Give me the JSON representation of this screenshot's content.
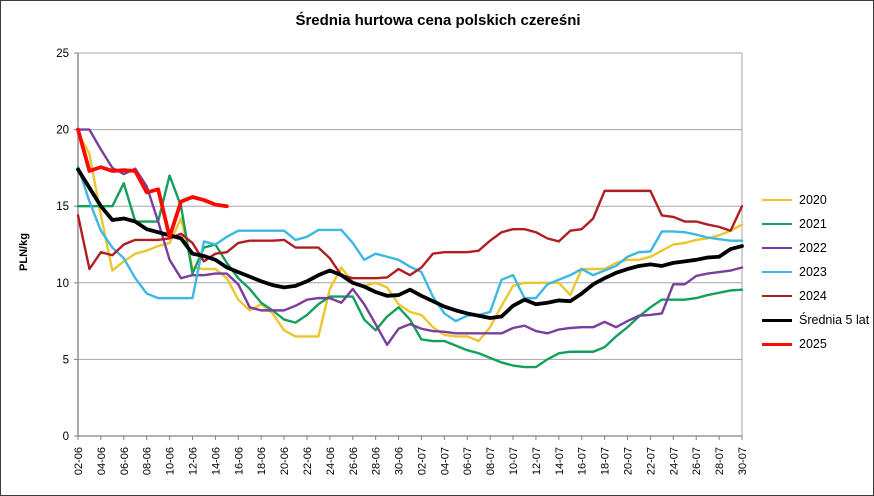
{
  "chart_data": {
    "type": "line",
    "title": "Średnia hurtowa cena polskich czereśni",
    "ylabel": "PLN/kg",
    "xlabel": "",
    "ylim": [
      0,
      25
    ],
    "y_ticks": [
      0,
      5,
      10,
      15,
      20,
      25
    ],
    "x_tick_every": 2,
    "grid": "horizontal-gridlines-on",
    "legend_position": "right",
    "axis_color": "#808080",
    "grid_color": "#a6a6a6",
    "text_color": "#000000",
    "categories": [
      "02-06",
      "03-06",
      "04-06",
      "05-06",
      "06-06",
      "07-06",
      "08-06",
      "09-06",
      "10-06",
      "11-06",
      "12-06",
      "13-06",
      "14-06",
      "15-06",
      "16-06",
      "17-06",
      "18-06",
      "19-06",
      "20-06",
      "21-06",
      "22-06",
      "23-06",
      "24-06",
      "25-06",
      "26-06",
      "27-06",
      "28-06",
      "29-06",
      "30-06",
      "01-07",
      "02-07",
      "03-07",
      "04-07",
      "05-07",
      "06-07",
      "07-07",
      "08-07",
      "09-07",
      "10-07",
      "11-07",
      "12-07",
      "13-07",
      "14-07",
      "15-07",
      "16-07",
      "17-07",
      "18-07",
      "19-07",
      "20-07",
      "21-07",
      "22-07",
      "23-07",
      "24-07",
      "25-07",
      "26-07",
      "27-07",
      "28-07",
      "29-07",
      "30-07"
    ],
    "series": [
      {
        "name": "2020",
        "color": "#edc62f",
        "width": 2.4,
        "values": [
          19.8,
          18.4,
          14.4,
          10.8,
          11.4,
          11.9,
          12.1,
          12.4,
          12.6,
          14.2,
          11.0,
          10.9,
          10.9,
          10.3,
          8.9,
          8.2,
          8.6,
          8.0,
          6.9,
          6.5,
          6.5,
          6.5,
          9.6,
          11.0,
          10.0,
          9.8,
          10.0,
          9.7,
          8.6,
          8.1,
          7.9,
          7.1,
          6.6,
          6.5,
          6.5,
          6.2,
          7.1,
          8.5,
          9.8,
          10.0,
          10.0,
          10.0,
          10.0,
          9.2,
          10.9,
          10.9,
          10.9,
          11.3,
          11.5,
          11.5,
          11.7,
          12.1,
          12.5,
          12.6,
          12.8,
          12.9,
          13.1,
          13.4,
          13.8
        ]
      },
      {
        "name": "2021",
        "color": "#13a05c",
        "width": 2.4,
        "values": [
          15.0,
          15.0,
          15.0,
          15.0,
          16.5,
          14.0,
          14.0,
          14.0,
          17.0,
          15.0,
          10.6,
          12.3,
          12.5,
          11.3,
          10.3,
          9.6,
          8.7,
          8.2,
          7.6,
          7.4,
          7.9,
          8.6,
          9.1,
          9.1,
          9.1,
          7.6,
          6.9,
          7.8,
          8.4,
          7.6,
          6.3,
          6.2,
          6.2,
          5.9,
          5.6,
          5.4,
          5.1,
          4.8,
          4.6,
          4.5,
          4.5,
          5.0,
          5.4,
          5.5,
          5.5,
          5.5,
          5.8,
          6.5,
          7.1,
          7.8,
          8.4,
          8.9,
          8.9,
          8.9,
          9.0,
          9.2,
          9.35,
          9.5,
          9.55
        ]
      },
      {
        "name": "2022",
        "color": "#7a3e9d",
        "width": 2.4,
        "values": [
          20.0,
          20.0,
          18.7,
          17.5,
          17.1,
          17.45,
          16.3,
          14.0,
          11.5,
          10.3,
          10.5,
          10.5,
          10.6,
          10.6,
          9.9,
          8.4,
          8.2,
          8.2,
          8.2,
          8.5,
          8.9,
          9.0,
          9.0,
          8.7,
          9.6,
          8.6,
          7.3,
          5.95,
          7.0,
          7.3,
          7.0,
          6.85,
          6.8,
          6.7,
          6.7,
          6.7,
          6.7,
          6.7,
          7.05,
          7.2,
          6.85,
          6.7,
          6.95,
          7.05,
          7.1,
          7.1,
          7.45,
          7.1,
          7.5,
          7.85,
          7.9,
          8.0,
          9.9,
          9.9,
          10.45,
          10.6,
          10.7,
          10.8,
          11.0
        ]
      },
      {
        "name": "2023",
        "color": "#3eb7e5",
        "width": 2.4,
        "values": [
          17.6,
          15.3,
          13.4,
          12.3,
          11.6,
          10.3,
          9.3,
          9.0,
          9.0,
          9.0,
          9.0,
          12.7,
          12.5,
          13.0,
          13.4,
          13.4,
          13.4,
          13.4,
          13.4,
          12.8,
          13.0,
          13.45,
          13.45,
          13.45,
          12.6,
          11.5,
          11.9,
          11.7,
          11.5,
          11.05,
          10.7,
          9.1,
          8.0,
          7.5,
          7.85,
          7.9,
          8.1,
          10.2,
          10.5,
          9.0,
          9.0,
          9.9,
          10.2,
          10.5,
          10.9,
          10.5,
          10.8,
          11.1,
          11.7,
          12.0,
          12.05,
          13.35,
          13.35,
          13.3,
          13.15,
          12.95,
          12.85,
          12.75,
          12.75
        ]
      },
      {
        "name": "2024",
        "color": "#b01e23",
        "width": 2.4,
        "values": [
          14.4,
          10.9,
          12.0,
          11.8,
          12.5,
          12.8,
          12.8,
          12.8,
          12.9,
          13.2,
          12.6,
          11.4,
          11.9,
          12.0,
          12.6,
          12.75,
          12.75,
          12.75,
          12.8,
          12.3,
          12.3,
          12.3,
          11.6,
          10.5,
          10.3,
          10.3,
          10.3,
          10.35,
          10.9,
          10.5,
          11.0,
          11.9,
          12.0,
          12.0,
          12.0,
          12.1,
          12.75,
          13.3,
          13.5,
          13.5,
          13.3,
          12.9,
          12.7,
          13.4,
          13.5,
          14.2,
          16.0,
          16.0,
          16.0,
          16.0,
          16.0,
          14.4,
          14.3,
          14.0,
          14.0,
          13.8,
          13.65,
          13.4,
          15.0
        ]
      },
      {
        "name": "Średnia 5 lat",
        "color": "#000000",
        "width": 3.8,
        "values": [
          17.4,
          16.2,
          15.0,
          14.1,
          14.2,
          14.0,
          13.5,
          13.3,
          13.1,
          12.9,
          11.9,
          11.75,
          11.5,
          11.0,
          10.7,
          10.4,
          10.1,
          9.85,
          9.7,
          9.8,
          10.1,
          10.5,
          10.8,
          10.5,
          10.0,
          9.75,
          9.4,
          9.15,
          9.2,
          9.55,
          9.15,
          8.8,
          8.45,
          8.2,
          8.0,
          7.85,
          7.7,
          7.8,
          8.5,
          8.9,
          8.6,
          8.7,
          8.85,
          8.8,
          9.3,
          9.9,
          10.3,
          10.65,
          10.9,
          11.1,
          11.2,
          11.1,
          11.3,
          11.4,
          11.5,
          11.65,
          11.7,
          12.2,
          12.4
        ]
      },
      {
        "name": "2025",
        "color": "#fb0905",
        "width": 3.8,
        "values": [
          20.0,
          17.3,
          17.55,
          17.3,
          17.35,
          17.3,
          15.9,
          16.1,
          13.0,
          15.3,
          15.6,
          15.4,
          15.1,
          15.0
        ]
      }
    ]
  }
}
